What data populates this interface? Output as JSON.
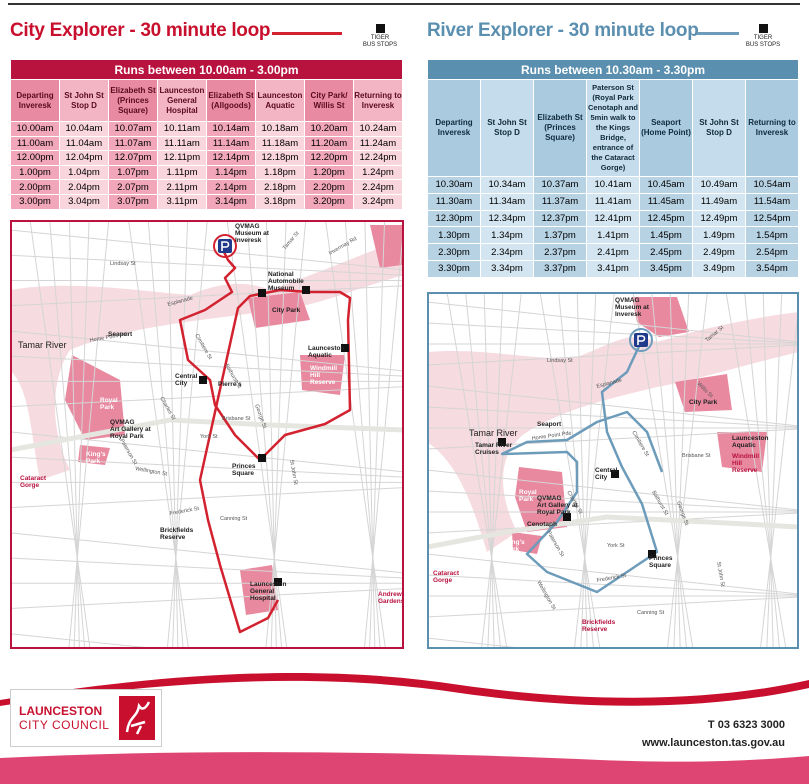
{
  "city": {
    "title": "City Explorer - 30 minute loop",
    "legend": [
      "TIGER",
      "BUS STOPS"
    ],
    "table": {
      "banner": "Runs between 10.00am - 3.00pm",
      "headers": [
        "Departing Inveresk",
        "St John St Stop D",
        "Elizabeth St (Princes Square)",
        "Launceston General Hospital",
        "Elizabeth St (Allgoods)",
        "Launceston Aquatic",
        "City Park/ Willis St",
        "Returning to Inveresk"
      ],
      "rows": [
        [
          "10.00am",
          "10.04am",
          "10.07am",
          "10.11am",
          "10.14am",
          "10.18am",
          "10.20am",
          "10.24am"
        ],
        [
          "11.00am",
          "11.04am",
          "11.07am",
          "11.11am",
          "11.14am",
          "11.18am",
          "11.20am",
          "11.24am"
        ],
        [
          "12.00pm",
          "12.04pm",
          "12.07pm",
          "12.11pm",
          "12.14pm",
          "12.18pm",
          "12.20pm",
          "12.24pm"
        ],
        [
          "1.00pm",
          "1.04pm",
          "1.07pm",
          "1.11pm",
          "1.14pm",
          "1.18pm",
          "1.20pm",
          "1.24pm"
        ],
        [
          "2.00pm",
          "2.04pm",
          "2.07pm",
          "2.11pm",
          "2.14pm",
          "2.18pm",
          "2.20pm",
          "2.24pm"
        ],
        [
          "3.00pm",
          "3.04pm",
          "3.07pm",
          "3.11pm",
          "3.14pm",
          "3.18pm",
          "3.20pm",
          "3.24pm"
        ]
      ]
    },
    "map": {
      "places": [
        [
          "QVMAG",
          "Museum at",
          "Inveresk"
        ],
        [
          "National",
          "Automobile",
          "Museum"
        ],
        "City Park",
        [
          "Launceston",
          "Aquatic"
        ],
        [
          "Windmill",
          "Hill",
          "Reserve"
        ],
        "Seaport",
        "Tamar River",
        [
          "Central",
          "City"
        ],
        "Pierre's",
        [
          "Royal",
          "Park"
        ],
        [
          "QVMAG",
          "Art Gallery at",
          "Royal Park"
        ],
        [
          "King's",
          "Park"
        ],
        [
          "Princes",
          "Square"
        ],
        [
          "Cataract",
          "Gorge"
        ],
        [
          "Brickfields",
          "Reserve"
        ],
        [
          "Launceston",
          "General",
          "Hospital"
        ],
        [
          "Andrew",
          "Gardens"
        ]
      ],
      "streets": [
        "Esplanade",
        "Home Point Pde",
        "Brisbane St",
        "York St",
        "Frederick St",
        "Canning St",
        "Wellington St",
        "Charles St",
        "St John St",
        "George St",
        "Tamar St",
        "Lindsay St",
        "Invermay Rd",
        "Bathurst St",
        "Paterson St",
        "Cimitiere St"
      ]
    }
  },
  "river": {
    "title": "River Explorer - 30 minute loop",
    "legend": [
      "TIGER",
      "BUS STOPS"
    ],
    "table": {
      "banner": "Runs between 10.30am - 3.30pm",
      "headers": [
        "Departing Inveresk",
        "St John St Stop D",
        "Elizabeth St (Princes Square)",
        "Paterson St (Royal Park Cenotaph and 5min walk to the Kings Bridge, entrance of the Cataract Gorge)",
        "Seaport (Home Point)",
        "St John St Stop D",
        "Returning to Inveresk"
      ],
      "rows": [
        [
          "10.30am",
          "10.34am",
          "10.37am",
          "10.41am",
          "10.45am",
          "10.49am",
          "10.54am"
        ],
        [
          "11.30am",
          "11.34am",
          "11.37am",
          "11.41am",
          "11.45am",
          "11.49am",
          "11.54am"
        ],
        [
          "12.30pm",
          "12.34pm",
          "12.37pm",
          "12.41pm",
          "12.45pm",
          "12.49pm",
          "12.54pm"
        ],
        [
          "1.30pm",
          "1.34pm",
          "1.37pm",
          "1.41pm",
          "1.45pm",
          "1.49pm",
          "1.54pm"
        ],
        [
          "2.30pm",
          "2.34pm",
          "2.37pm",
          "2.41pm",
          "2.45pm",
          "2.49pm",
          "2.54pm"
        ],
        [
          "3.30pm",
          "3.34pm",
          "3.37pm",
          "3.41pm",
          "3.45pm",
          "3.49pm",
          "3.54pm"
        ]
      ]
    },
    "map": {
      "places": [
        [
          "QVMAG",
          "Museum at",
          "Inveresk"
        ],
        "City Park",
        [
          "Launceston",
          "Aquatic"
        ],
        [
          "Windmill",
          "Hill",
          "Reserve"
        ],
        "Tamar River",
        [
          "Tamar River",
          "Cruises"
        ],
        "Seaport",
        [
          "Central",
          "City"
        ],
        [
          "Royal",
          "Park"
        ],
        [
          "QVMAG",
          "Art Gallery at",
          "Royal Park"
        ],
        "Cenotaph",
        [
          "King's",
          "Park"
        ],
        [
          "Cataract",
          "Gorge"
        ],
        [
          "Princes",
          "Square"
        ],
        [
          "Brickfields",
          "Reserve"
        ]
      ],
      "streets": [
        "Esplanade",
        "Home Point Pde",
        "Brisbane St",
        "York St",
        "Frederick St",
        "Canning St",
        "Wellington St",
        "Charles St",
        "St John St",
        "George St",
        "Tamar St",
        "Lindsay St",
        "Willis St",
        "Bathurst St",
        "Paterson St",
        "Cimitiere St"
      ]
    }
  },
  "footer": {
    "logo": [
      "LAUNCESTON",
      "CITY COUNCIL"
    ],
    "phone": "T 03 6323 3000",
    "website": "www.launceston.tas.gov.au"
  }
}
